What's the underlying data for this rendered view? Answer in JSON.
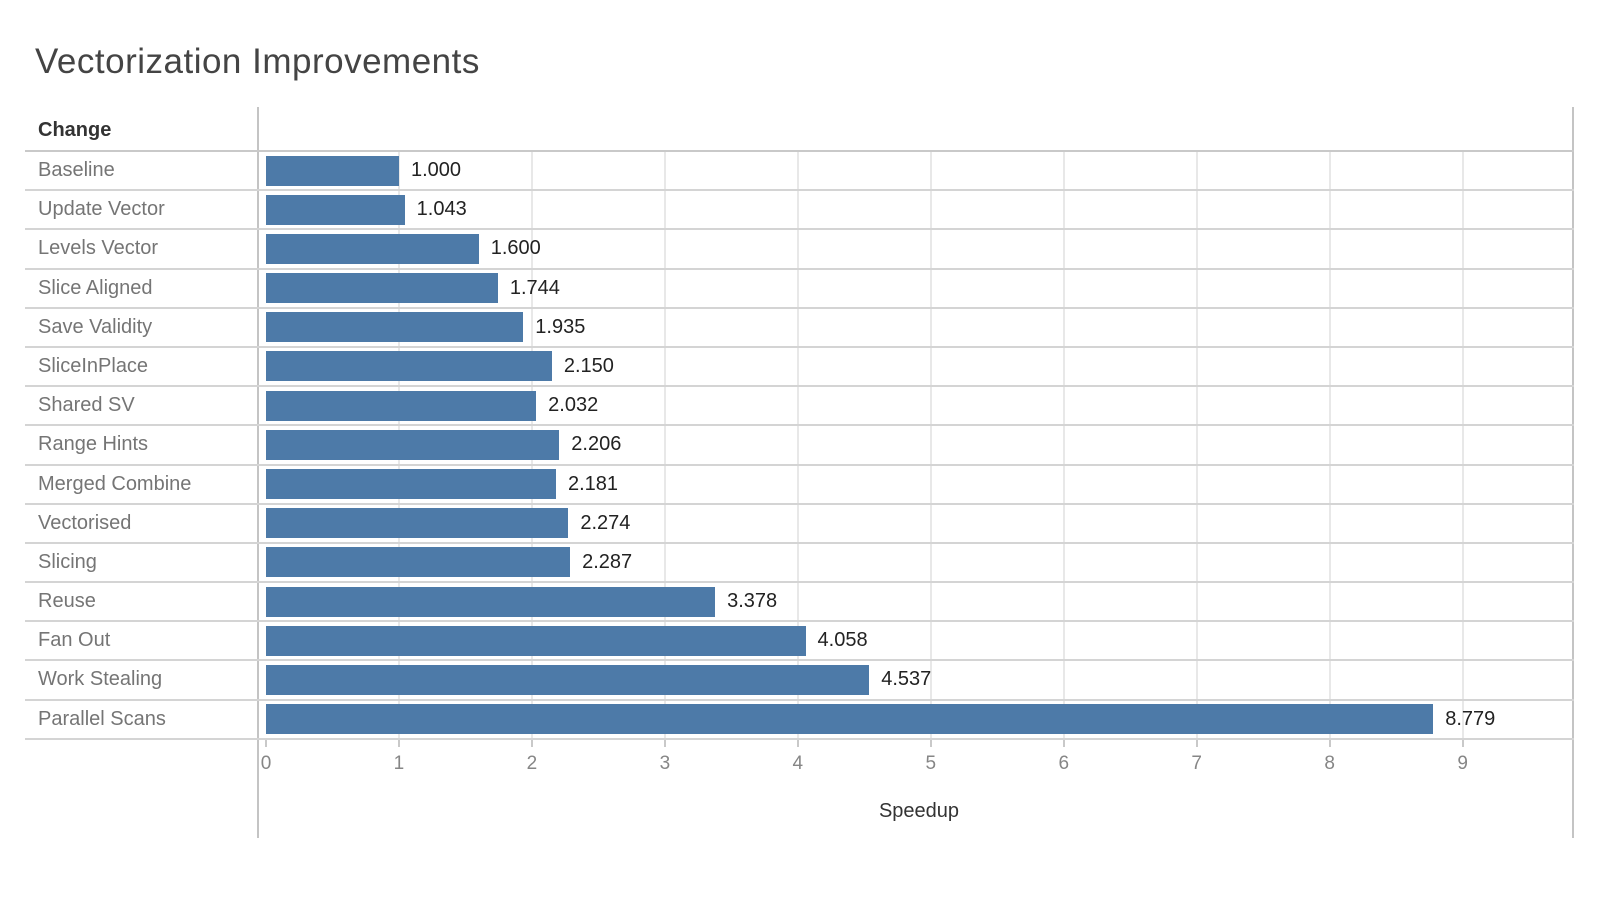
{
  "title": "Vectorization Improvements",
  "chart_data": {
    "type": "bar",
    "orientation": "horizontal",
    "title": "Vectorization Improvements",
    "row_header": "Change",
    "xlabel": "Speedup",
    "categories": [
      "Baseline",
      "Update Vector",
      "Levels Vector",
      "Slice Aligned",
      "Save Validity",
      "SliceInPlace",
      "Shared SV",
      "Range Hints",
      "Merged Combine",
      "Vectorised",
      "Slicing",
      "Reuse",
      "Fan Out",
      "Work Stealing",
      "Parallel Scans"
    ],
    "values": [
      1.0,
      1.043,
      1.6,
      1.744,
      1.935,
      2.15,
      2.032,
      2.206,
      2.181,
      2.274,
      2.287,
      3.378,
      4.058,
      4.537,
      8.779
    ],
    "value_labels": [
      "1.000",
      "1.043",
      "1.600",
      "1.744",
      "1.935",
      "2.150",
      "2.032",
      "2.206",
      "2.181",
      "2.274",
      "2.287",
      "3.378",
      "4.058",
      "4.537",
      "8.779"
    ],
    "xlim": [
      0,
      9.83
    ],
    "xticks": [
      0,
      1,
      2,
      3,
      4,
      5,
      6,
      7,
      8,
      9
    ],
    "grid": "vertical",
    "legend": "none",
    "bar_color": "#4d7aa8"
  },
  "colors": {
    "bar": "#4d7aa8",
    "title_text": "#444444",
    "header_text": "#333333",
    "row_label_text": "#757575",
    "value_text": "#222222",
    "tick_text": "#868686",
    "gridline": "#e8e8e8",
    "separator": "#d4d4d4",
    "frame": "#c4c4c4"
  }
}
